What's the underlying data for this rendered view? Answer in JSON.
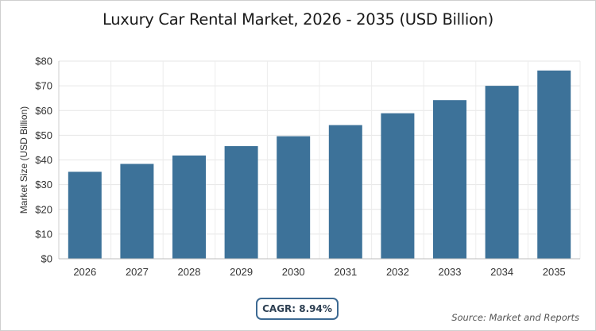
{
  "chart_data": {
    "type": "bar",
    "title": "Luxury Car Rental Market, 2026 - 2035 (USD Billion)",
    "ylabel": "Market Size (USD Billion)",
    "xlabel": "",
    "categories": [
      "2026",
      "2027",
      "2028",
      "2029",
      "2030",
      "2031",
      "2032",
      "2033",
      "2034",
      "2035"
    ],
    "values": [
      35.2,
      38.4,
      41.8,
      45.6,
      49.6,
      54.1,
      58.9,
      64.2,
      70.0,
      76.2
    ],
    "ylim": [
      0,
      80
    ],
    "yticks": [
      0,
      10,
      20,
      30,
      40,
      50,
      60,
      70,
      80
    ],
    "ytick_labels": [
      "$0",
      "$10",
      "$20",
      "$30",
      "$40",
      "$50",
      "$60",
      "$70",
      "$80"
    ],
    "bar_color": "#3d7299",
    "grid": true,
    "legend": "none"
  },
  "cagr_label": "CAGR: 8.94%",
  "source_label": "Source: Market and Reports"
}
